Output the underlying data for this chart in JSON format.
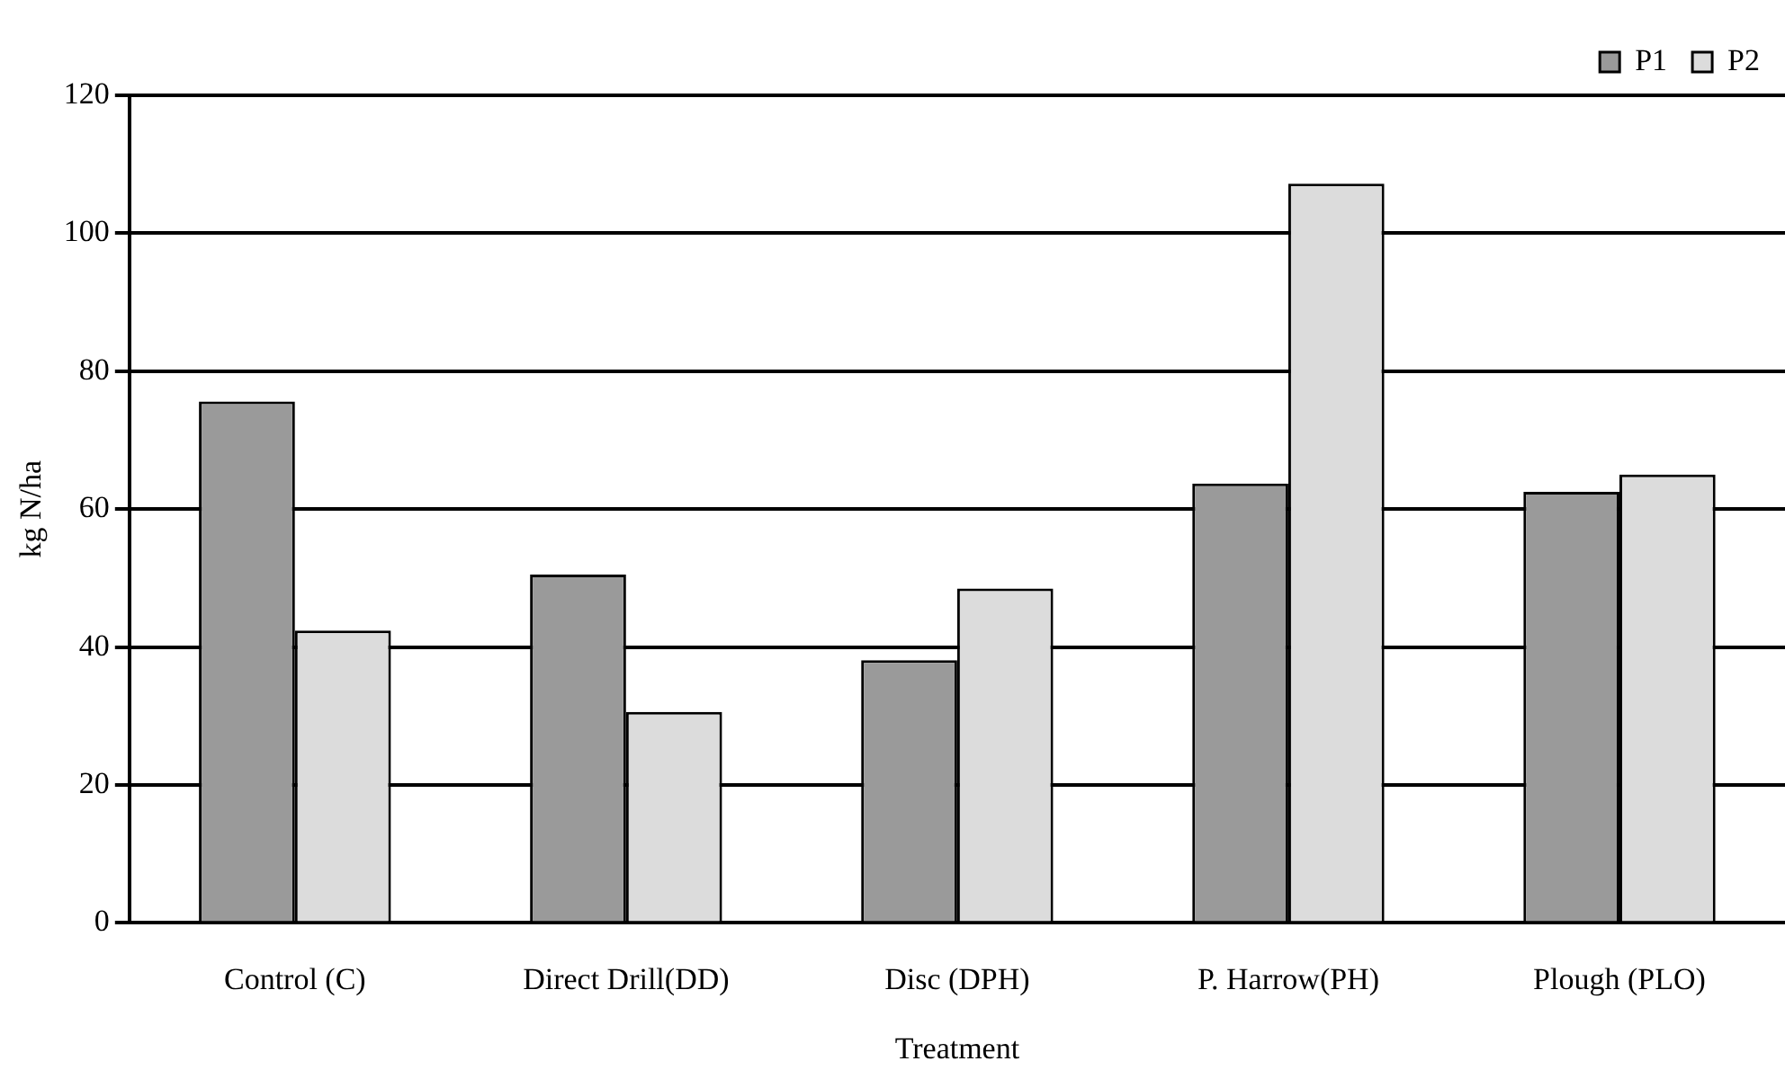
{
  "chart_data": {
    "type": "bar",
    "xlabel": "Treatment",
    "ylabel": "kg N/ha",
    "categories": [
      "Control (C)",
      "Direct Drill(DD)",
      "Disc (DPH)",
      "P. Harrow(PH)",
      "Plough (PLO)"
    ],
    "series": [
      {
        "name": "P1",
        "color": "#9a9a9a",
        "values": [
          75.6,
          50.5,
          38.1,
          63.7,
          62.5
        ]
      },
      {
        "name": "P2",
        "color": "#dcdcdc",
        "values": [
          42.4,
          30.6,
          48.5,
          107.2,
          65.0
        ]
      }
    ],
    "ylim": [
      0,
      120
    ],
    "yticks": [
      0,
      20,
      40,
      60,
      80,
      100,
      120
    ],
    "grid": "y",
    "legend": "top right"
  }
}
